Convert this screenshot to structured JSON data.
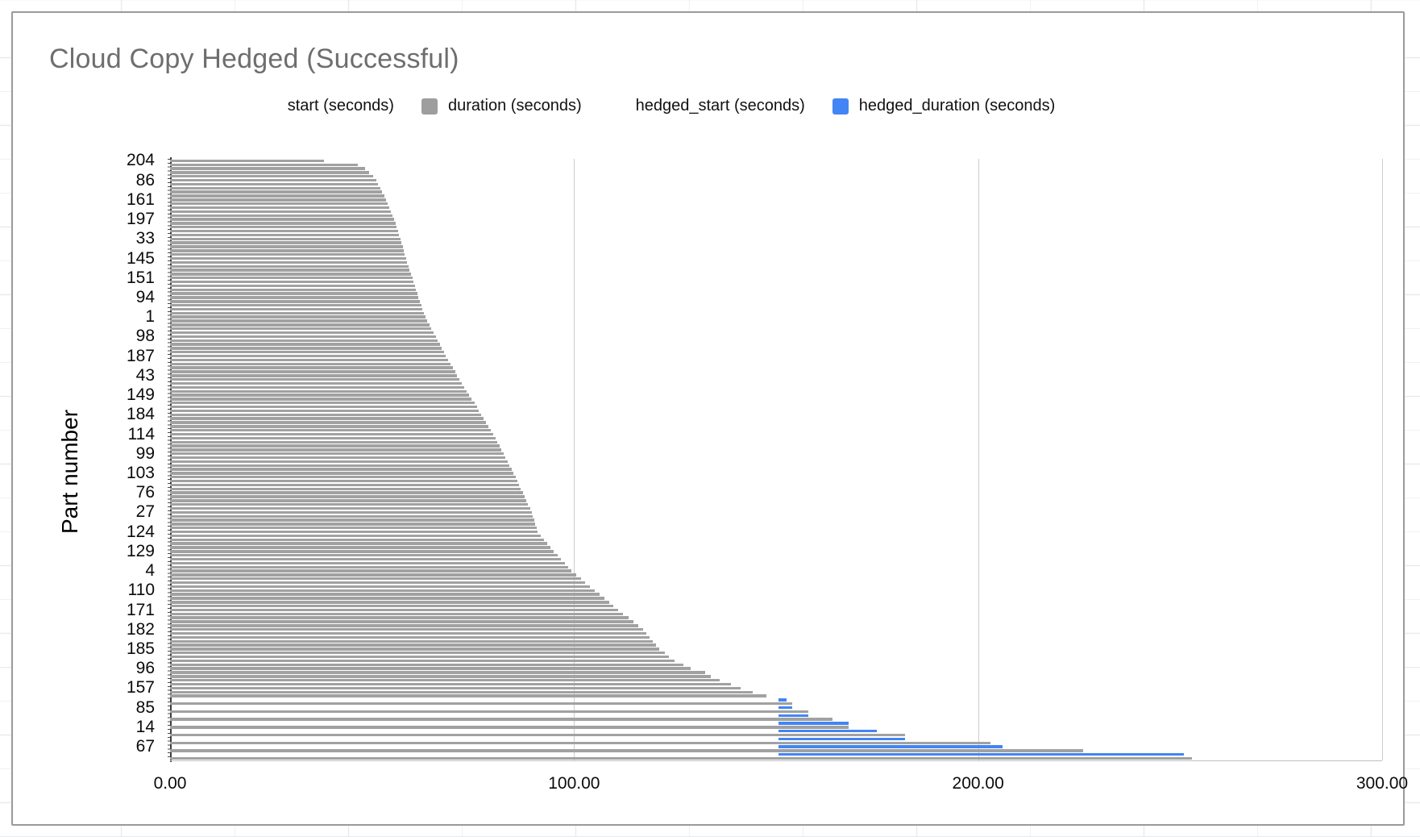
{
  "chart_data": {
    "type": "bar",
    "orientation": "horizontal",
    "title": "Cloud Copy Hedged (Successful)",
    "ylabel": "Part number",
    "xlabel": "",
    "unit": "seconds",
    "xlim": [
      0,
      300
    ],
    "x_ticks": [
      "0.00",
      "100.00",
      "200.00",
      "300.00"
    ],
    "x_tick_values": [
      0,
      100,
      200,
      300
    ],
    "grid": "vertical-only",
    "legend_position": "top",
    "legend": [
      {
        "label": "start (seconds)",
        "color": "#ffffff"
      },
      {
        "label": "duration (seconds)",
        "color": "#9e9e9e"
      },
      {
        "label": "hedged_start (seconds)",
        "color": "#ffffff"
      },
      {
        "label": "hedged_duration (seconds)",
        "color": "#4285f4"
      }
    ],
    "colors": {
      "duration_bar": "#a1a1a1",
      "hedged_bar": "#4285f4",
      "title_text": "#6e6e6e"
    },
    "note": "Each row is one copy operation; gray bars = duration from 0s, blue bars = hedged_duration starting at hedged_start ~150.6s. Y-axis labels shown every 5th row.",
    "rows": [
      {
        "v": 38.1,
        "l": "204"
      },
      {
        "v": 46.5
      },
      {
        "v": 48.3
      },
      {
        "v": 49.2
      },
      {
        "v": 50.2
      },
      {
        "v": 51.0,
        "l": "86"
      },
      {
        "v": 51.5
      },
      {
        "v": 52.0
      },
      {
        "v": 52.5
      },
      {
        "v": 53.0
      },
      {
        "v": 53.5,
        "l": "161"
      },
      {
        "v": 53.9
      },
      {
        "v": 54.3
      },
      {
        "v": 54.7
      },
      {
        "v": 55.1
      },
      {
        "v": 55.5,
        "l": "197"
      },
      {
        "v": 55.8
      },
      {
        "v": 56.1
      },
      {
        "v": 56.4
      },
      {
        "v": 56.7
      },
      {
        "v": 57.0,
        "l": "33"
      },
      {
        "v": 57.3
      },
      {
        "v": 57.6
      },
      {
        "v": 57.9
      },
      {
        "v": 58.1
      },
      {
        "v": 58.4,
        "l": "145"
      },
      {
        "v": 58.7
      },
      {
        "v": 59.0
      },
      {
        "v": 59.3
      },
      {
        "v": 59.7
      },
      {
        "v": 60.0,
        "l": "151"
      },
      {
        "v": 60.3
      },
      {
        "v": 60.6
      },
      {
        "v": 60.9
      },
      {
        "v": 61.2
      },
      {
        "v": 61.5,
        "l": "94"
      },
      {
        "v": 61.8
      },
      {
        "v": 62.2
      },
      {
        "v": 62.5
      },
      {
        "v": 62.9
      },
      {
        "v": 63.2,
        "l": "1"
      },
      {
        "v": 63.7
      },
      {
        "v": 64.2
      },
      {
        "v": 64.7
      },
      {
        "v": 65.3
      },
      {
        "v": 65.8,
        "l": "98"
      },
      {
        "v": 66.3
      },
      {
        "v": 66.8
      },
      {
        "v": 67.3
      },
      {
        "v": 67.8
      },
      {
        "v": 68.3,
        "l": "187"
      },
      {
        "v": 68.9
      },
      {
        "v": 69.4
      },
      {
        "v": 70.0
      },
      {
        "v": 70.6
      },
      {
        "v": 71.1,
        "l": "43"
      },
      {
        "v": 71.7
      },
      {
        "v": 72.3
      },
      {
        "v": 72.9
      },
      {
        "v": 73.5
      },
      {
        "v": 74.1,
        "l": "149"
      },
      {
        "v": 74.7
      },
      {
        "v": 75.3
      },
      {
        "v": 75.9
      },
      {
        "v": 76.4
      },
      {
        "v": 77.0,
        "l": "184"
      },
      {
        "v": 77.6
      },
      {
        "v": 78.2
      },
      {
        "v": 78.8
      },
      {
        "v": 79.4
      },
      {
        "v": 80.0,
        "l": "114"
      },
      {
        "v": 80.5
      },
      {
        "v": 81.0
      },
      {
        "v": 81.5
      },
      {
        "v": 82.0
      },
      {
        "v": 82.5,
        "l": "99"
      },
      {
        "v": 83.0
      },
      {
        "v": 83.5
      },
      {
        "v": 84.0
      },
      {
        "v": 84.5
      },
      {
        "v": 85.0,
        "l": "103"
      },
      {
        "v": 85.5
      },
      {
        "v": 85.9
      },
      {
        "v": 86.4
      },
      {
        "v": 86.8
      },
      {
        "v": 87.3,
        "l": "76"
      },
      {
        "v": 87.7
      },
      {
        "v": 88.2
      },
      {
        "v": 88.6
      },
      {
        "v": 89.1
      },
      {
        "v": 89.5,
        "l": "27"
      },
      {
        "v": 89.8
      },
      {
        "v": 90.1
      },
      {
        "v": 90.4
      },
      {
        "v": 90.7
      },
      {
        "v": 91.0,
        "l": "124"
      },
      {
        "v": 91.8
      },
      {
        "v": 92.6
      },
      {
        "v": 93.4
      },
      {
        "v": 94.2
      },
      {
        "v": 95.0,
        "l": "129"
      },
      {
        "v": 95.9
      },
      {
        "v": 96.8
      },
      {
        "v": 97.7
      },
      {
        "v": 98.5
      },
      {
        "v": 99.4,
        "l": "4"
      },
      {
        "v": 100.5
      },
      {
        "v": 101.7
      },
      {
        "v": 102.8
      },
      {
        "v": 104.0
      },
      {
        "v": 105.1,
        "l": "110"
      },
      {
        "v": 106.3
      },
      {
        "v": 107.5
      },
      {
        "v": 108.7
      },
      {
        "v": 109.8
      },
      {
        "v": 111.0,
        "l": "171"
      },
      {
        "v": 112.2
      },
      {
        "v": 113.4
      },
      {
        "v": 114.6
      },
      {
        "v": 115.8
      },
      {
        "v": 117.0,
        "l": "182"
      },
      {
        "v": 117.8
      },
      {
        "v": 118.6
      },
      {
        "v": 119.4
      },
      {
        "v": 120.3
      },
      {
        "v": 121.1,
        "l": "185"
      },
      {
        "v": 122.4
      },
      {
        "v": 123.5
      },
      {
        "v": 124.9
      },
      {
        "v": 127.0
      },
      {
        "v": 128.8,
        "l": "96"
      },
      {
        "v": 132.4
      },
      {
        "v": 133.8
      },
      {
        "v": 136.1
      },
      {
        "v": 138.9
      },
      {
        "v": 141.3,
        "l": "157"
      },
      {
        "v": 144.3
      },
      {
        "v": 147.6
      },
      {
        "v": 152.5,
        "s": 150.6
      },
      {
        "v": 154.0
      },
      {
        "v": 154.0,
        "s": 150.6,
        "l": "85"
      },
      {
        "v": 158.0
      },
      {
        "v": 158.0,
        "s": 150.6
      },
      {
        "v": 164.0
      },
      {
        "v": 168.0,
        "s": 150.6
      },
      {
        "v": 168.0,
        "l": "14"
      },
      {
        "v": 175.0,
        "s": 150.6
      },
      {
        "v": 182.0
      },
      {
        "v": 182.0,
        "s": 150.6
      },
      {
        "v": 203.0
      },
      {
        "v": 206.0,
        "s": 150.6,
        "l": "67"
      },
      {
        "v": 226.0
      },
      {
        "v": 251.0,
        "s": 150.6
      },
      {
        "v": 253.0
      }
    ]
  }
}
